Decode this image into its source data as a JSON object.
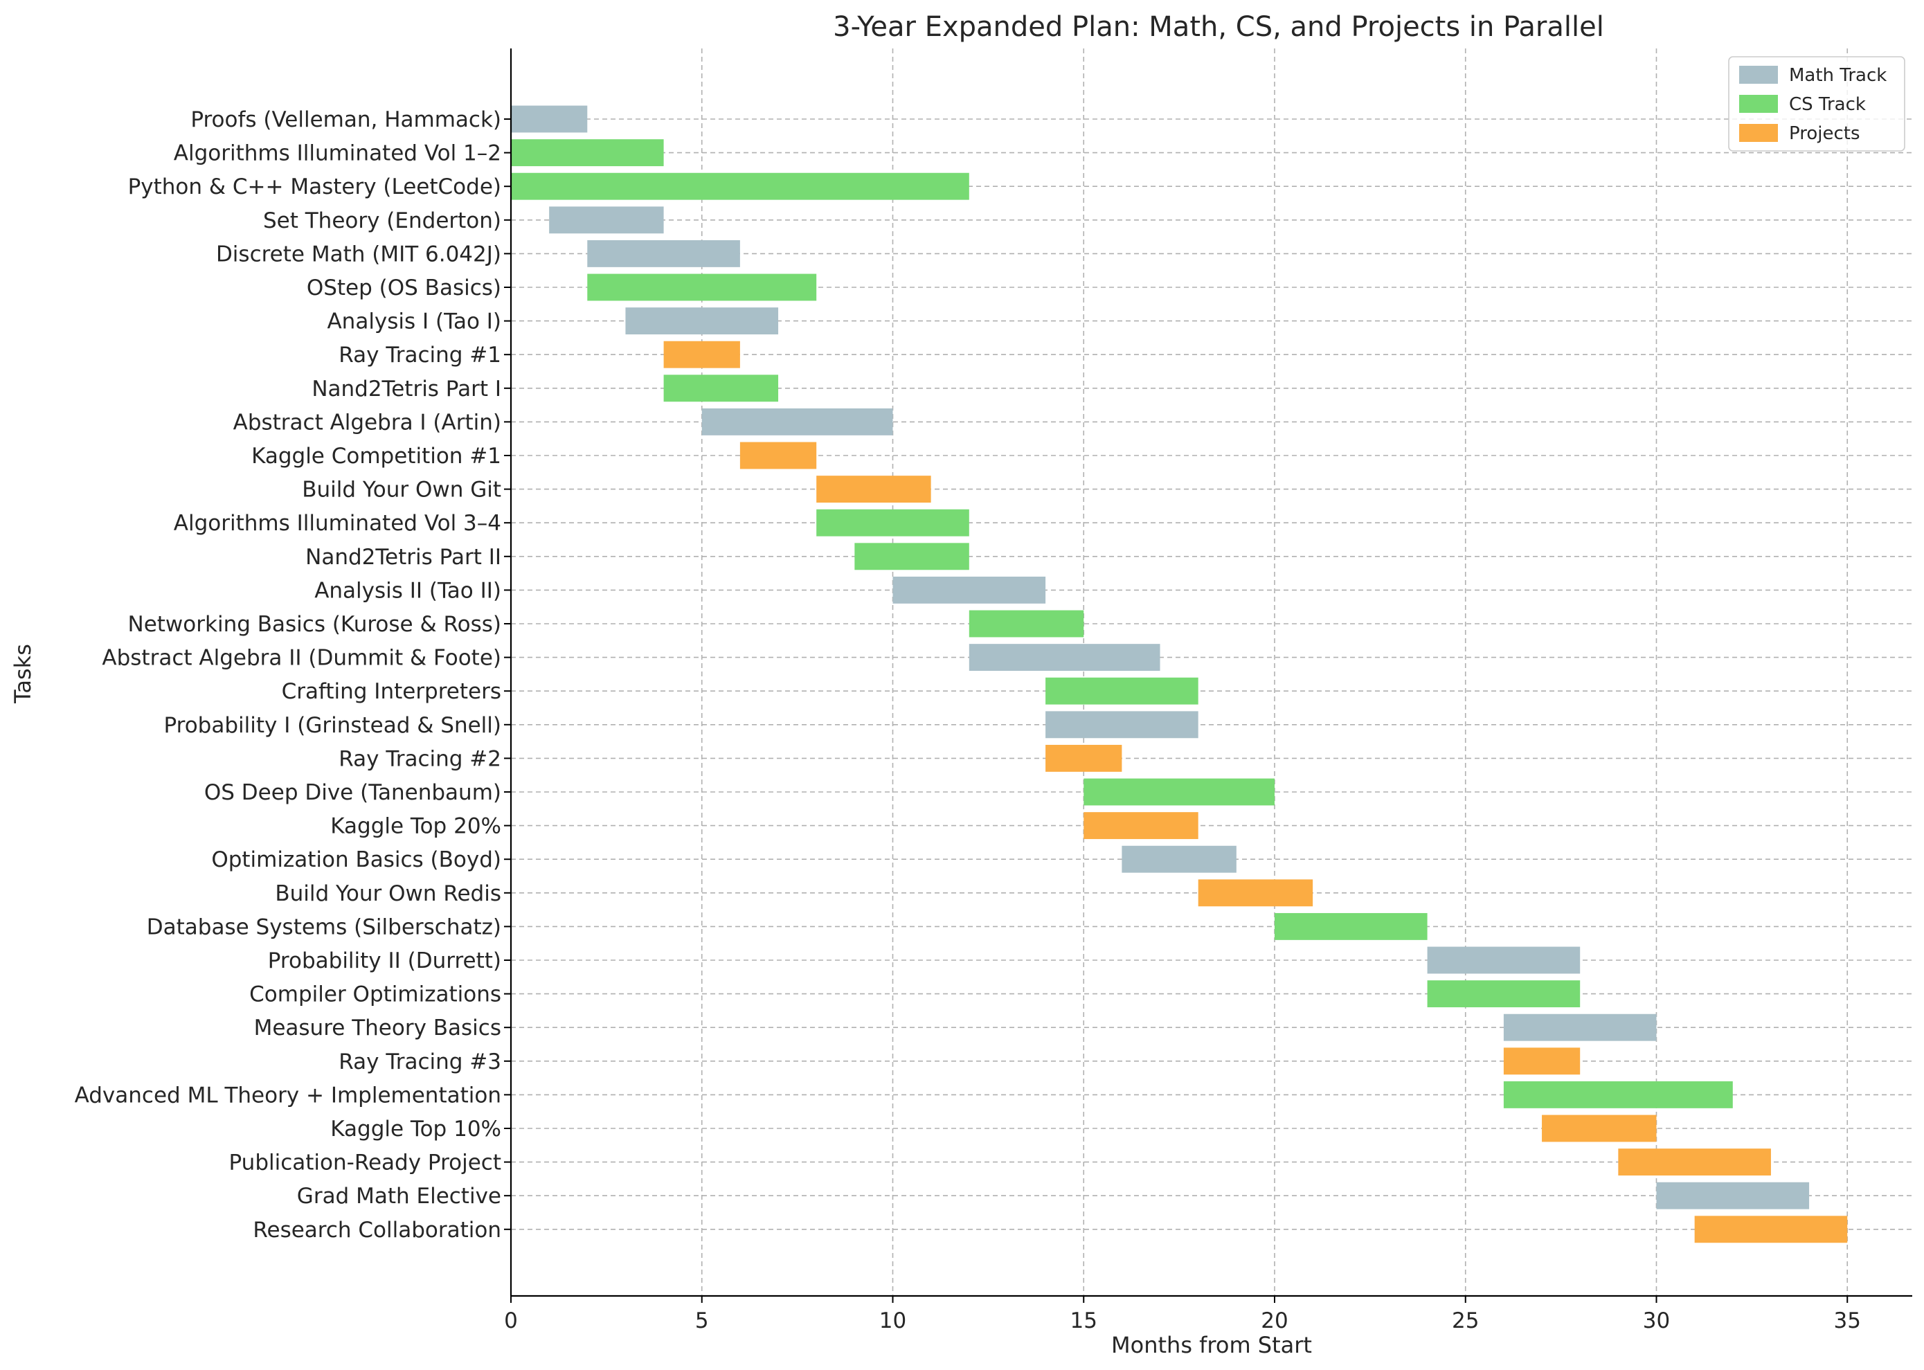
{
  "chart_data": {
    "type": "bar",
    "orientation": "horizontal",
    "title": "3-Year Expanded Plan: Math, CS, and Projects in Parallel",
    "xlabel": "Months from Start",
    "ylabel": "Tasks",
    "xlim": [
      0,
      36.7
    ],
    "xticks": [
      0,
      5,
      10,
      15,
      20,
      25,
      30,
      35
    ],
    "grid": true,
    "legend_position": "top-right",
    "series": [
      {
        "name": "Math Track",
        "color": "#a9bfc8"
      },
      {
        "name": "CS Track",
        "color": "#77da73"
      },
      {
        "name": "Projects",
        "color": "#fbac43"
      }
    ],
    "tasks": [
      {
        "label": "Proofs (Velleman, Hammack)",
        "track": "Math Track",
        "start": 0,
        "end": 2
      },
      {
        "label": "Algorithms Illuminated Vol 1–2",
        "track": "CS Track",
        "start": 0,
        "end": 4
      },
      {
        "label": "Python & C++ Mastery (LeetCode)",
        "track": "CS Track",
        "start": 0,
        "end": 12
      },
      {
        "label": "Set Theory (Enderton)",
        "track": "Math Track",
        "start": 1,
        "end": 4
      },
      {
        "label": "Discrete Math (MIT 6.042J)",
        "track": "Math Track",
        "start": 2,
        "end": 6
      },
      {
        "label": "OStep (OS Basics)",
        "track": "CS Track",
        "start": 2,
        "end": 8
      },
      {
        "label": "Analysis I (Tao I)",
        "track": "Math Track",
        "start": 3,
        "end": 7
      },
      {
        "label": "Ray Tracing #1",
        "track": "Projects",
        "start": 4,
        "end": 6
      },
      {
        "label": "Nand2Tetris Part I",
        "track": "CS Track",
        "start": 4,
        "end": 7
      },
      {
        "label": "Abstract Algebra I (Artin)",
        "track": "Math Track",
        "start": 5,
        "end": 10
      },
      {
        "label": "Kaggle Competition #1",
        "track": "Projects",
        "start": 6,
        "end": 8
      },
      {
        "label": "Build Your Own Git",
        "track": "Projects",
        "start": 8,
        "end": 11
      },
      {
        "label": "Algorithms Illuminated Vol 3–4",
        "track": "CS Track",
        "start": 8,
        "end": 12
      },
      {
        "label": "Nand2Tetris Part II",
        "track": "CS Track",
        "start": 9,
        "end": 12
      },
      {
        "label": "Analysis II (Tao II)",
        "track": "Math Track",
        "start": 10,
        "end": 14
      },
      {
        "label": "Networking Basics (Kurose & Ross)",
        "track": "CS Track",
        "start": 12,
        "end": 15
      },
      {
        "label": "Abstract Algebra II (Dummit & Foote)",
        "track": "Math Track",
        "start": 12,
        "end": 17
      },
      {
        "label": "Crafting Interpreters",
        "track": "CS Track",
        "start": 14,
        "end": 18
      },
      {
        "label": "Probability I (Grinstead & Snell)",
        "track": "Math Track",
        "start": 14,
        "end": 18
      },
      {
        "label": "Ray Tracing #2",
        "track": "Projects",
        "start": 14,
        "end": 16
      },
      {
        "label": "OS Deep Dive (Tanenbaum)",
        "track": "CS Track",
        "start": 15,
        "end": 20
      },
      {
        "label": "Kaggle Top 20%",
        "track": "Projects",
        "start": 15,
        "end": 18
      },
      {
        "label": "Optimization Basics (Boyd)",
        "track": "Math Track",
        "start": 16,
        "end": 19
      },
      {
        "label": "Build Your Own Redis",
        "track": "Projects",
        "start": 18,
        "end": 21
      },
      {
        "label": "Database Systems (Silberschatz)",
        "track": "CS Track",
        "start": 20,
        "end": 24
      },
      {
        "label": "Probability II (Durrett)",
        "track": "Math Track",
        "start": 24,
        "end": 28
      },
      {
        "label": "Compiler Optimizations",
        "track": "CS Track",
        "start": 24,
        "end": 28
      },
      {
        "label": "Measure Theory Basics",
        "track": "Math Track",
        "start": 26,
        "end": 30
      },
      {
        "label": "Ray Tracing #3",
        "track": "Projects",
        "start": 26,
        "end": 28
      },
      {
        "label": "Advanced ML Theory + Implementation",
        "track": "CS Track",
        "start": 26,
        "end": 32
      },
      {
        "label": "Kaggle Top 10%",
        "track": "Projects",
        "start": 27,
        "end": 30
      },
      {
        "label": "Publication-Ready Project",
        "track": "Projects",
        "start": 29,
        "end": 33
      },
      {
        "label": "Grad Math Elective",
        "track": "Math Track",
        "start": 30,
        "end": 34
      },
      {
        "label": "Research Collaboration",
        "track": "Projects",
        "start": 31,
        "end": 35
      }
    ]
  }
}
